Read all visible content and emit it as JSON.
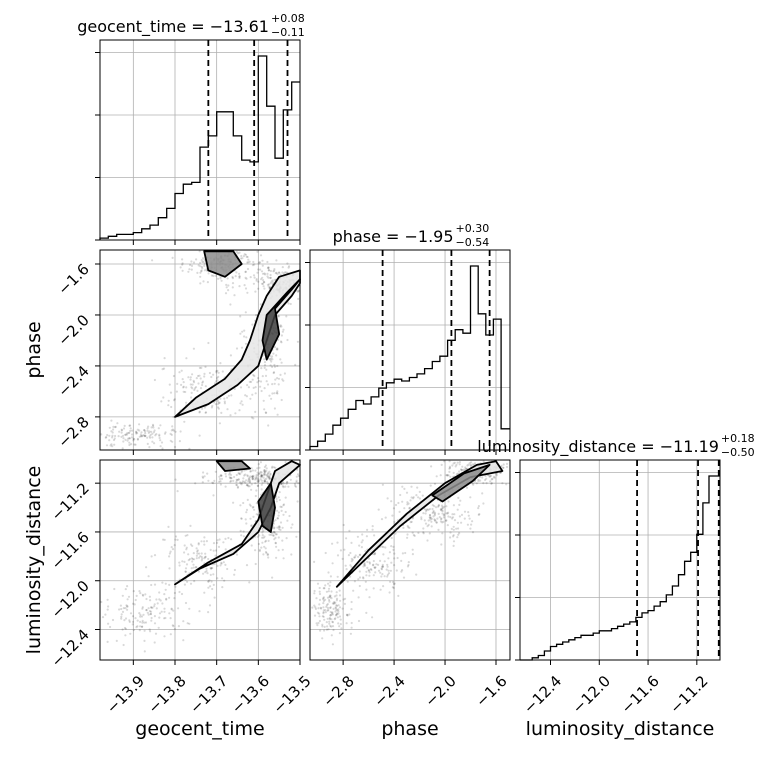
{
  "chart_data": {
    "type": "corner",
    "grid": true,
    "parameters": [
      {
        "name": "geocent_time",
        "axis_label": "geocent_time",
        "title_prefix": "geocent_time = ",
        "median": "−13.61",
        "plus": "+0.08",
        "minus": "−0.11",
        "range": [
          -13.98,
          -13.5
        ],
        "ticks": [
          -13.9,
          -13.8,
          -13.7,
          -13.6,
          -13.5
        ],
        "tick_labels": [
          "−13.9",
          "−13.8",
          "−13.7",
          "−13.6",
          "−13.5"
        ],
        "quantiles": [
          -13.72,
          -13.61,
          -13.53
        ]
      },
      {
        "name": "phase",
        "axis_label": "phase",
        "title_prefix": "phase = ",
        "median": "−1.95",
        "plus": "+0.30",
        "minus": "−0.54",
        "range": [
          -3.06,
          -1.49
        ],
        "ticks": [
          -2.8,
          -2.4,
          -2.0,
          -1.6
        ],
        "tick_labels": [
          "−2.8",
          "−2.4",
          "−2.0",
          "−1.6"
        ],
        "quantiles": [
          -2.49,
          -1.95,
          -1.65
        ]
      },
      {
        "name": "luminosity_distance",
        "axis_label": "luminosity_distance",
        "title_prefix": "luminosity_distance = ",
        "median": "−11.19",
        "plus": "+0.18",
        "minus": "−0.50",
        "range": [
          -12.65,
          -11.01
        ],
        "ticks": [
          -12.4,
          -12.0,
          -11.6,
          -11.2
        ],
        "tick_labels": [
          "−12.4",
          "−12.0",
          "−11.6",
          "−11.2"
        ],
        "quantiles": [
          -11.69,
          -11.19,
          -11.02
        ]
      }
    ],
    "histograms": [
      {
        "parameter": "geocent_time",
        "edges": [
          -13.98,
          -13.96,
          -13.94,
          -13.92,
          -13.9,
          -13.88,
          -13.86,
          -13.84,
          -13.82,
          -13.8,
          -13.78,
          -13.76,
          -13.74,
          -13.72,
          -13.7,
          -13.68,
          -13.66,
          -13.64,
          -13.62,
          -13.6,
          -13.58,
          -13.56,
          -13.54,
          -13.52,
          -13.5
        ],
        "counts": [
          1,
          2,
          3,
          3,
          4,
          6,
          8,
          12,
          17,
          25,
          30,
          31,
          50,
          56,
          69,
          69,
          56,
          43,
          42,
          99,
          72,
          44,
          70,
          85
        ]
      },
      {
        "parameter": "phase",
        "edges": [
          -3.06,
          -3.0,
          -2.94,
          -2.88,
          -2.82,
          -2.76,
          -2.7,
          -2.64,
          -2.58,
          -2.52,
          -2.46,
          -2.4,
          -2.34,
          -2.28,
          -2.22,
          -2.16,
          -2.1,
          -2.04,
          -1.98,
          -1.92,
          -1.86,
          -1.8,
          -1.74,
          -1.68,
          -1.62,
          -1.56,
          -1.49
        ],
        "counts": [
          2,
          5,
          9,
          14,
          18,
          23,
          28,
          26,
          30,
          35,
          38,
          40,
          39,
          41,
          43,
          46,
          50,
          53,
          62,
          68,
          66,
          104,
          77,
          65,
          74,
          12
        ]
      },
      {
        "parameter": "luminosity_distance",
        "edges": [
          -12.65,
          -12.55,
          -12.5,
          -12.45,
          -12.4,
          -12.35,
          -12.3,
          -12.25,
          -12.2,
          -12.15,
          -12.1,
          -12.05,
          -12.0,
          -11.95,
          -11.9,
          -11.85,
          -11.8,
          -11.75,
          -11.7,
          -11.65,
          -11.6,
          -11.55,
          -11.5,
          -11.45,
          -11.4,
          -11.35,
          -11.3,
          -11.25,
          -11.2,
          -11.15,
          -11.1,
          -11.05,
          -11.01
        ],
        "counts": [
          0,
          1,
          2,
          4,
          6,
          7,
          8,
          9,
          10,
          11,
          11,
          12,
          13,
          13,
          14,
          15,
          16,
          17,
          19,
          21,
          22,
          24,
          26,
          29,
          33,
          38,
          44,
          48,
          56,
          70,
          82,
          82
        ]
      }
    ],
    "scatter_2d": [
      {
        "x": "geocent_time",
        "y": "phase",
        "clusters": [
          {
            "center": [
              -13.68,
              -1.6
            ],
            "spread": [
              0.05,
              0.08
            ],
            "n": 220
          },
          {
            "center": [
              -13.54,
              -1.75
            ],
            "spread": [
              0.03,
              0.06
            ],
            "n": 180
          },
          {
            "center": [
              -13.58,
              -2.25
            ],
            "spread": [
              0.03,
              0.25
            ],
            "n": 200
          },
          {
            "center": [
              -13.72,
              -2.6
            ],
            "spread": [
              0.06,
              0.12
            ],
            "n": 160
          },
          {
            "center": [
              -13.9,
              -2.95
            ],
            "spread": [
              0.06,
              0.05
            ],
            "n": 160
          }
        ],
        "contour_levels": [
          [
            [
              -13.8,
              -2.8
            ],
            [
              -13.72,
              -2.7
            ],
            [
              -13.65,
              -2.55
            ],
            [
              -13.6,
              -2.4
            ],
            [
              -13.58,
              -2.2
            ],
            [
              -13.56,
              -2.0
            ],
            [
              -13.52,
              -1.85
            ],
            [
              -13.5,
              -1.75
            ],
            [
              -13.5,
              -1.65
            ],
            [
              -13.55,
              -1.7
            ],
            [
              -13.58,
              -1.85
            ],
            [
              -13.6,
              -2.0
            ],
            [
              -13.62,
              -2.2
            ],
            [
              -13.64,
              -2.35
            ],
            [
              -13.68,
              -2.5
            ],
            [
              -13.75,
              -2.65
            ],
            [
              -13.8,
              -2.8
            ]
          ],
          [
            [
              -13.73,
              -1.5
            ],
            [
              -13.66,
              -1.5
            ],
            [
              -13.64,
              -1.6
            ],
            [
              -13.68,
              -1.7
            ],
            [
              -13.72,
              -1.65
            ],
            [
              -13.73,
              -1.5
            ]
          ],
          [
            [
              -13.58,
              -2.35
            ],
            [
              -13.55,
              -2.15
            ],
            [
              -13.56,
              -1.95
            ],
            [
              -13.52,
              -1.8
            ],
            [
              -13.5,
              -1.72
            ],
            [
              -13.53,
              -1.82
            ],
            [
              -13.58,
              -2.0
            ],
            [
              -13.59,
              -2.2
            ],
            [
              -13.58,
              -2.35
            ]
          ]
        ]
      },
      {
        "x": "geocent_time",
        "y": "luminosity_distance",
        "clusters": [
          {
            "center": [
              -13.6,
              -11.15
            ],
            "spread": [
              0.06,
              0.05
            ],
            "n": 260
          },
          {
            "center": [
              -13.58,
              -11.5
            ],
            "spread": [
              0.03,
              0.15
            ],
            "n": 200
          },
          {
            "center": [
              -13.75,
              -11.85
            ],
            "spread": [
              0.05,
              0.12
            ],
            "n": 150
          },
          {
            "center": [
              -13.88,
              -12.25
            ],
            "spread": [
              0.06,
              0.12
            ],
            "n": 160
          }
        ],
        "contour_levels": [
          [
            [
              -13.8,
              -12.03
            ],
            [
              -13.72,
              -11.85
            ],
            [
              -13.64,
              -11.7
            ],
            [
              -13.6,
              -11.5
            ],
            [
              -13.58,
              -11.3
            ],
            [
              -13.56,
              -11.1
            ],
            [
              -13.52,
              -11.02
            ],
            [
              -13.5,
              -11.05
            ],
            [
              -13.55,
              -11.2
            ],
            [
              -13.57,
              -11.4
            ],
            [
              -13.6,
              -11.6
            ],
            [
              -13.66,
              -11.78
            ],
            [
              -13.74,
              -11.9
            ],
            [
              -13.8,
              -12.03
            ]
          ],
          [
            [
              -13.7,
              -11.02
            ],
            [
              -13.64,
              -11.02
            ],
            [
              -13.62,
              -11.08
            ],
            [
              -13.68,
              -11.1
            ],
            [
              -13.7,
              -11.02
            ]
          ],
          [
            [
              -13.57,
              -11.6
            ],
            [
              -13.56,
              -11.4
            ],
            [
              -13.57,
              -11.2
            ],
            [
              -13.6,
              -11.35
            ],
            [
              -13.59,
              -11.55
            ],
            [
              -13.57,
              -11.6
            ]
          ]
        ]
      },
      {
        "x": "phase",
        "y": "luminosity_distance",
        "clusters": [
          {
            "center": [
              -1.75,
              -11.1
            ],
            "spread": [
              0.12,
              0.06
            ],
            "n": 260
          },
          {
            "center": [
              -2.1,
              -11.45
            ],
            "spread": [
              0.18,
              0.12
            ],
            "n": 220
          },
          {
            "center": [
              -2.6,
              -11.85
            ],
            "spread": [
              0.15,
              0.12
            ],
            "n": 160
          },
          {
            "center": [
              -2.9,
              -12.25
            ],
            "spread": [
              0.08,
              0.12
            ],
            "n": 160
          }
        ],
        "contour_levels": [
          [
            [
              -2.85,
              -12.05
            ],
            [
              -2.6,
              -11.75
            ],
            [
              -2.3,
              -11.45
            ],
            [
              -2.0,
              -11.2
            ],
            [
              -1.75,
              -11.05
            ],
            [
              -1.6,
              -11.02
            ],
            [
              -1.55,
              -11.1
            ],
            [
              -1.8,
              -11.15
            ],
            [
              -2.05,
              -11.3
            ],
            [
              -2.35,
              -11.55
            ],
            [
              -2.65,
              -11.85
            ],
            [
              -2.85,
              -12.05
            ]
          ],
          [
            [
              -2.1,
              -11.3
            ],
            [
              -1.85,
              -11.12
            ],
            [
              -1.65,
              -11.05
            ],
            [
              -1.78,
              -11.18
            ],
            [
              -2.02,
              -11.35
            ],
            [
              -2.1,
              -11.3
            ]
          ]
        ]
      }
    ]
  }
}
